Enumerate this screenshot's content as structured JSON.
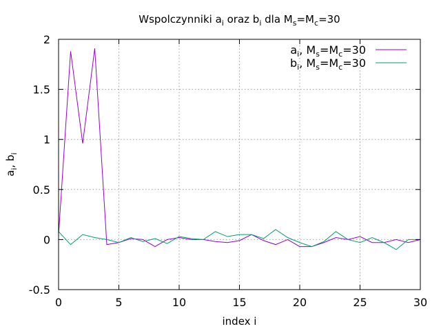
{
  "chart_data": {
    "type": "line",
    "title": {
      "parts": [
        {
          "t": "Wspolczynniki a"
        },
        {
          "t": "i",
          "sub": true
        },
        {
          "t": " oraz b"
        },
        {
          "t": "i",
          "sub": true
        },
        {
          "t": " dla M"
        },
        {
          "t": "s",
          "sub": true
        },
        {
          "t": "=M"
        },
        {
          "t": "c",
          "sub": true
        },
        {
          "t": "=30"
        }
      ]
    },
    "xlabel": "index i",
    "ylabel": {
      "parts": [
        {
          "t": "a"
        },
        {
          "t": "i",
          "sub": true
        },
        {
          "t": ", b"
        },
        {
          "t": "i",
          "sub": true
        }
      ]
    },
    "xlim": [
      0,
      30
    ],
    "ylim": [
      -0.5,
      2
    ],
    "xticks": [
      0,
      5,
      10,
      15,
      20,
      25,
      30
    ],
    "xtick_labels": [
      "0",
      "5",
      "10",
      "15",
      "20",
      "25",
      "30"
    ],
    "yticks": [
      -0.5,
      0,
      0.5,
      1,
      1.5,
      2
    ],
    "ytick_labels": [
      "-0.5",
      "0",
      "0.5",
      "1",
      "1.5",
      "2"
    ],
    "grid": true,
    "legend_position": "top-right",
    "x": [
      0,
      1,
      2,
      3,
      4,
      5,
      6,
      7,
      8,
      9,
      10,
      11,
      12,
      13,
      14,
      15,
      16,
      17,
      18,
      19,
      20,
      21,
      22,
      23,
      24,
      25,
      26,
      27,
      28,
      29,
      30
    ],
    "series": [
      {
        "id": "a",
        "color": "#9400d3",
        "legend": [
          {
            "t": "a"
          },
          {
            "t": "i",
            "sub": true
          },
          {
            "t": ", M"
          },
          {
            "t": "s",
            "sub": true
          },
          {
            "t": "=M"
          },
          {
            "t": "c",
            "sub": true
          },
          {
            "t": "=30"
          }
        ],
        "values": [
          0.05,
          1.88,
          0.96,
          1.91,
          -0.05,
          -0.03,
          0.01,
          0.0,
          -0.07,
          0.0,
          0.02,
          0.0,
          0.0,
          -0.02,
          -0.03,
          -0.01,
          0.05,
          -0.01,
          -0.05,
          0.0,
          -0.07,
          -0.07,
          -0.03,
          0.02,
          0.0,
          0.03,
          -0.03,
          -0.03,
          0.0,
          -0.03,
          0.0
        ]
      },
      {
        "id": "b",
        "color": "#009e73",
        "legend": [
          {
            "t": "b"
          },
          {
            "t": "i",
            "sub": true
          },
          {
            "t": ", M"
          },
          {
            "t": "s",
            "sub": true
          },
          {
            "t": "=M"
          },
          {
            "t": "c",
            "sub": true
          },
          {
            "t": "=30"
          }
        ],
        "values": [
          0.08,
          -0.05,
          0.05,
          0.02,
          0.0,
          -0.03,
          0.02,
          -0.02,
          0.01,
          -0.04,
          0.03,
          0.01,
          0.0,
          0.08,
          0.03,
          0.05,
          0.05,
          0.01,
          0.1,
          0.02,
          -0.03,
          -0.07,
          -0.02,
          0.08,
          0.0,
          -0.03,
          0.02,
          -0.03,
          -0.1,
          0.0,
          0.0
        ]
      }
    ]
  }
}
